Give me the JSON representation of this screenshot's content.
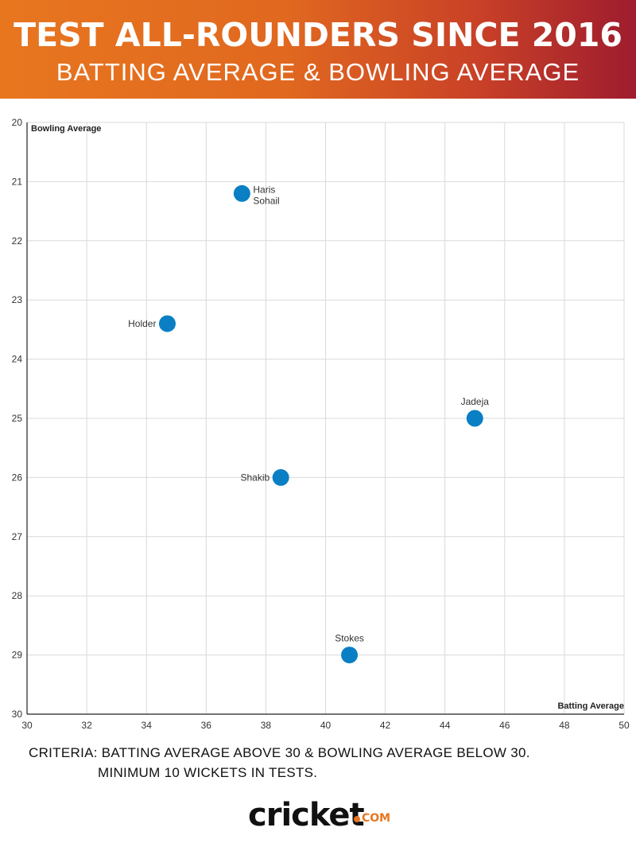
{
  "header": {
    "title": "TEST ALL-ROUNDERS SINCE 2016",
    "subtitle": "BATTING AVERAGE & BOWLING AVERAGE"
  },
  "colors": {
    "header_gradient": [
      "#e8761f",
      "#9e1c2e"
    ],
    "point": "#0a7fc4",
    "grid": "#d9d9d9"
  },
  "chart_data": {
    "type": "scatter",
    "xlabel": "Batting Average",
    "ylabel": "Bowling Average",
    "xlim": [
      30,
      50
    ],
    "ylim": [
      20,
      30
    ],
    "y_inverted": true,
    "grid": true,
    "x_ticks": [
      30,
      32,
      34,
      36,
      38,
      40,
      42,
      44,
      46,
      48,
      50
    ],
    "y_ticks": [
      20,
      21,
      22,
      23,
      24,
      25,
      26,
      27,
      28,
      29,
      30
    ],
    "points": [
      {
        "label": "Haris Sohail",
        "x": 37.2,
        "y": 21.2
      },
      {
        "label": "Holder",
        "x": 34.7,
        "y": 23.4
      },
      {
        "label": "Jadeja",
        "x": 45.0,
        "y": 25.0
      },
      {
        "label": "Shakib",
        "x": 38.5,
        "y": 26.0
      },
      {
        "label": "Stokes",
        "x": 40.8,
        "y": 29.0
      }
    ]
  },
  "footer": {
    "criteria_line1": "CRITERIA: BATTING AVERAGE ABOVE 30 & BOWLING AVERAGE BELOW 30.",
    "criteria_line2": "MINIMUM 10 WICKETS IN TESTS.",
    "logo_text": "cricket",
    "logo_suffix": "COM"
  }
}
